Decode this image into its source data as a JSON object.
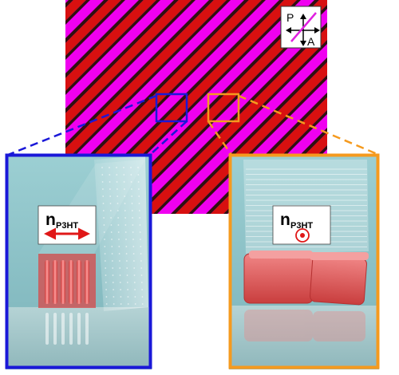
{
  "polarizer_indicator": {
    "polarizer_label": "P",
    "analyzer_label": "A"
  },
  "left_inset": {
    "label_main": "n",
    "label_sub": "P3HT",
    "orientation_symbol": "double-headed-arrow-icon"
  },
  "right_inset": {
    "label_main": "n",
    "label_sub": "P3HT",
    "orientation_symbol": "out-of-plane-dot-icon"
  },
  "colors": {
    "stripe_magenta": "#f000f0",
    "stripe_red": "#d81010",
    "stripe_dark": "#301010",
    "left_frame": "#1a18d8",
    "right_frame": "#f59a1e",
    "inset_background": "#8cc2c8",
    "crystal_red": "#e05555",
    "arrow_red": "#e01818"
  }
}
